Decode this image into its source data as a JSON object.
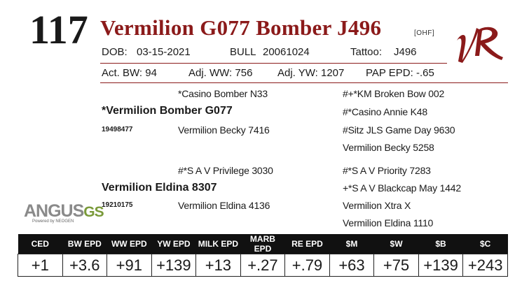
{
  "lot_number": "117",
  "animal_name": "Vermilion G077 Bomber J496",
  "owner_tag": "[OHF]",
  "logo_text": "VR",
  "info": {
    "dob_label": "DOB:",
    "dob_value": "03-15-2021",
    "sex_label": "BULL",
    "reg_number": "20061024",
    "tattoo_label": "Tattoo:",
    "tattoo_value": "J496"
  },
  "weights": {
    "act_bw": "Act. BW: 94",
    "adj_ww": "Adj. WW: 756",
    "adj_yw": "Adj. YW: 1207",
    "pap_epd": "PAP EPD: -.65"
  },
  "pedigree": {
    "sire_sire": "*Casino Bomber N33",
    "sire": "*Vermilion Bomber G077",
    "sire_reg": "19498477",
    "sire_dam": "Vermilion Becky 7416",
    "sire_ss_sire": "#+*KM Broken Bow 002",
    "sire_ss_dam": "#*Casino Annie K48",
    "sire_sd_sire": "#Sitz JLS Game Day 9630",
    "sire_sd_dam": "Vermilion Becky 5258",
    "dam_sire": "#*S A V Privilege 3030",
    "dam": "Vermilion Eldina 8307",
    "dam_reg": "19210175",
    "dam_dam": "Vermilion Eldina 4136",
    "dam_ds_sire": "#*S A V Priority 7283",
    "dam_ds_dam": "+*S A V Blackcap May 1442",
    "dam_dd_sire": "Vermilion Xtra X",
    "dam_dd_dam": "Vermilion Eldina 1110"
  },
  "angus_logo": {
    "brand": "ANGUS",
    "gs": "GS",
    "powered": "Powered by NEOGEN"
  },
  "epd_headers": [
    "CED",
    "BW EPD",
    "WW EPD",
    "YW EPD",
    "MILK EPD",
    "MARB EPD",
    "RE EPD",
    "$M",
    "$W",
    "$B",
    "$C"
  ],
  "epd_values": [
    "+1",
    "+3.6",
    "+91",
    "+139",
    "+13",
    "+.27",
    "+.79",
    "+63",
    "+75",
    "+139",
    "+243"
  ],
  "colors": {
    "accent": "#8b1a1a",
    "header_bg": "#111111",
    "angus_gray": "#8a8a8a",
    "gs_green": "#7a9a3a"
  }
}
